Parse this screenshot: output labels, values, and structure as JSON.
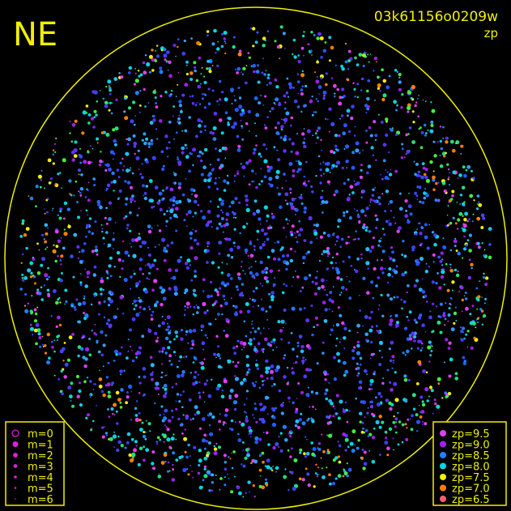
{
  "heading": "NE",
  "frame_id": "03k61156o0209w",
  "frame_note": "zp",
  "magnitude_legend": [
    {
      "label": "m=0"
    },
    {
      "label": "m=1"
    },
    {
      "label": "m=2"
    },
    {
      "label": "m=3"
    },
    {
      "label": "m=4"
    },
    {
      "label": "m=5"
    },
    {
      "label": "m=6"
    }
  ],
  "zp_legend": [
    {
      "label": "zp=9.5",
      "color": "#e040f0"
    },
    {
      "label": "zp=9.0",
      "color": "#a020f0"
    },
    {
      "label": "zp=8.5",
      "color": "#2080ff"
    },
    {
      "label": "zp=8.0",
      "color": "#00d8e0"
    },
    {
      "label": "zp=7.5",
      "color": "#f0f000"
    },
    {
      "label": "zp=7.0",
      "color": "#ff8000"
    },
    {
      "label": "zp=6.5",
      "color": "#ff6070"
    }
  ]
}
